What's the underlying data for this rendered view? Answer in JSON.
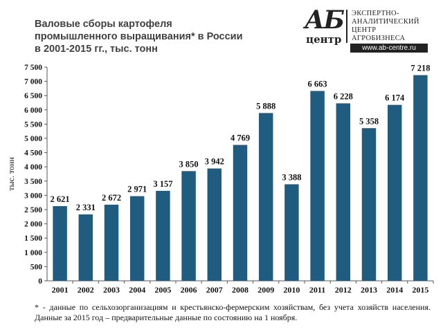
{
  "title_lines": [
    "Валовые сборы картофеля",
    "промышленного выращивания* в России",
    "в 2001-2015 гг., тыс. тонн"
  ],
  "logo": {
    "mark": "АБ",
    "mark_sub": "центр",
    "lines": [
      "ЭКСПЕРТНО-",
      "АНАЛИТИЧЕСКИЙ",
      "ЦЕНТР",
      "АГРОБИЗНЕСА"
    ],
    "url": "www.ab-centre.ru"
  },
  "footnote": "* - данные по сельхозорганизациям и крестьянско-фермерским хозяйствам, без учета хозяйств населения. Данные за 2015 год – предварительные данные по состоянию на 1 ноября.",
  "chart_data": {
    "type": "bar",
    "categories": [
      "2001",
      "2002",
      "2003",
      "2004",
      "2005",
      "2006",
      "2007",
      "2008",
      "2009",
      "2010",
      "2011",
      "2012",
      "2013",
      "2014",
      "2015"
    ],
    "values": [
      2621,
      2331,
      2672,
      2971,
      3157,
      3850,
      3942,
      4769,
      5888,
      3388,
      6663,
      6228,
      5358,
      6174,
      7218
    ],
    "value_labels": [
      "2 621",
      "2 331",
      "2 672",
      "2 971",
      "3 157",
      "3 850",
      "3 942",
      "4 769",
      "5 888",
      "3 388",
      "6 663",
      "6 228",
      "5 358",
      "6 174",
      "7 218"
    ],
    "ylabel": "тыс. тонн",
    "ylim": [
      0,
      7500
    ],
    "yticks": [
      0,
      500,
      1000,
      1500,
      2000,
      2500,
      3000,
      3500,
      4000,
      4500,
      5000,
      5500,
      6000,
      6500,
      7000,
      7500
    ],
    "ytick_labels": [
      "0",
      "500",
      "1 000",
      "1 500",
      "2 000",
      "2 500",
      "3 000",
      "3 500",
      "4 000",
      "4 500",
      "5 000",
      "5 500",
      "6 000",
      "6 500",
      "7 000",
      "7 500"
    ],
    "bar_color": "#1f5c80",
    "grid": false,
    "legend": "none"
  }
}
